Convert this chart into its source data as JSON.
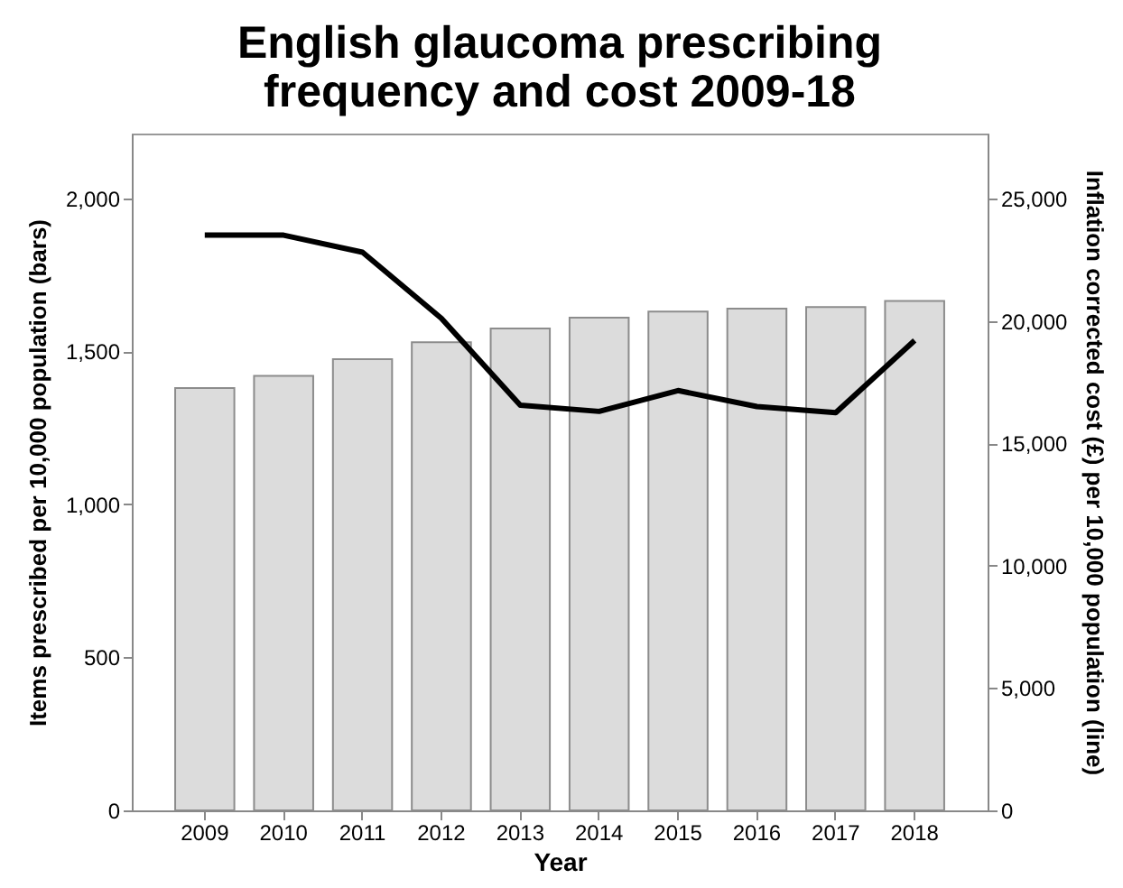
{
  "chart_data": {
    "type": "bar",
    "title": "English glaucoma prescribing\nfrequency and cost 2009-18",
    "xlabel": "Year",
    "ylabel": "Items prescribed per 10,000 population (bars)",
    "y2label": "Inflation corrected cost (£) per 10,000 population (line)",
    "categories": [
      "2009",
      "2010",
      "2011",
      "2012",
      "2013",
      "2014",
      "2015",
      "2016",
      "2017",
      "2018"
    ],
    "series": [
      {
        "color": "#dcdcdc",
        "values": [
          1380,
          1420,
          1475,
          1530,
          1575,
          1610,
          1630,
          1640,
          1645,
          1665
        ]
      },
      {
        "type": "line",
        "axis": "y2",
        "color": "#000000",
        "values": [
          23500,
          23500,
          22800,
          20100,
          16550,
          16300,
          17150,
          16500,
          16250,
          19200
        ]
      }
    ],
    "ylim": [
      0,
      2212
    ],
    "yticks": [
      0,
      {
        "value": 500,
        "label": "500"
      },
      {
        "value": 1000,
        "label": "1,000"
      },
      {
        "value": 1500,
        "label": "1,500"
      },
      {
        "value": 2000,
        "label": "2,000"
      }
    ],
    "y2lim": [
      0,
      27650
    ],
    "y2ticks": [
      0,
      {
        "value": 5000,
        "label": "5,000"
      },
      {
        "value": 10000,
        "label": "10,000"
      },
      {
        "value": 15000,
        "label": "15,000"
      },
      {
        "value": 20000,
        "label": "20,000"
      },
      {
        "value": 25000,
        "label": "25,000"
      }
    ],
    "grid": false,
    "legend": false,
    "marker": "none",
    "line_style": "solid"
  }
}
